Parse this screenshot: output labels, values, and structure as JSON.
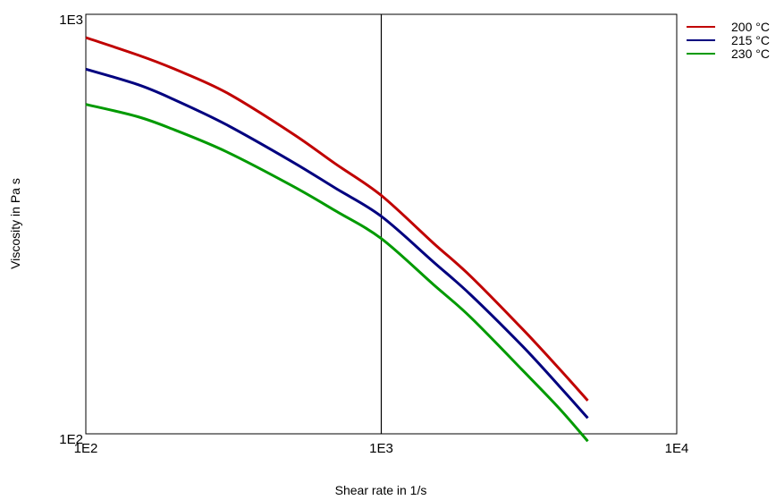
{
  "chart_data": {
    "type": "line",
    "title": "",
    "xlabel": "Shear rate in 1/s",
    "ylabel": "Viscosity in Pa s",
    "x_scale": "log",
    "y_scale": "log",
    "xlim": [
      100,
      10000
    ],
    "ylim": [
      100,
      1000
    ],
    "x_ticks": [
      {
        "value": 100,
        "label": "1E2"
      },
      {
        "value": 1000,
        "label": "1E3"
      },
      {
        "value": 10000,
        "label": "1E4"
      }
    ],
    "y_ticks": [
      {
        "value": 100,
        "label": "1E2"
      },
      {
        "value": 1000,
        "label": "1E3"
      }
    ],
    "reference_line_x": 1000,
    "legend_position": "top-right, outside plot",
    "x": [
      100,
      150,
      200,
      300,
      500,
      700,
      1000,
      1500,
      2000,
      3000,
      4000,
      5000
    ],
    "series": [
      {
        "name": "200 °C",
        "color": "#c00000",
        "values": [
          880,
          800,
          740,
          650,
          520,
          440,
          370,
          285,
          238,
          178,
          143,
          120
        ]
      },
      {
        "name": "215 °C",
        "color": "#00007f",
        "values": [
          740,
          680,
          625,
          545,
          445,
          385,
          330,
          257,
          215,
          162,
          130,
          109
        ]
      },
      {
        "name": "230 °C",
        "color": "#009a00",
        "values": [
          610,
          570,
          530,
          470,
          390,
          340,
          292,
          227,
          190,
          142,
          115,
          96
        ]
      }
    ]
  }
}
